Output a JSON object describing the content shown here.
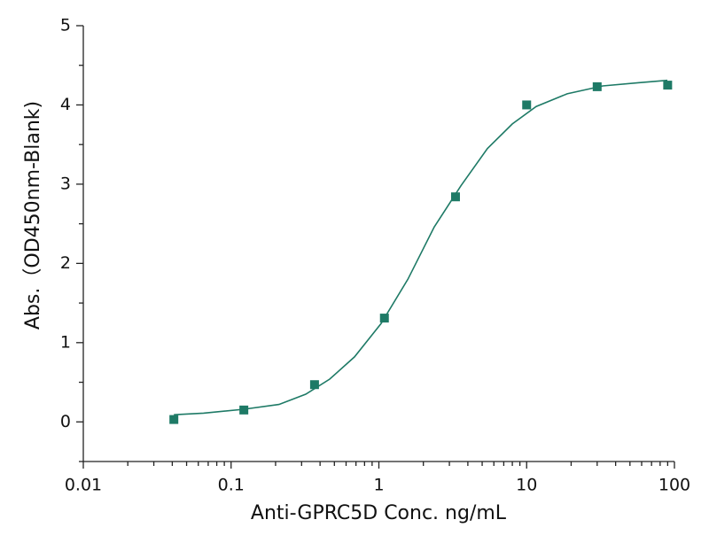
{
  "chart_data": {
    "type": "scatter",
    "x_label": "Anti-GPRC5D Conc. ng/mL",
    "y_label": "Abs.（OD450nm-Blank)",
    "xscale": "log",
    "xlim": [
      0.01,
      100
    ],
    "ylim": [
      -0.5,
      5
    ],
    "xticks": [
      0.01,
      0.1,
      1,
      10,
      100
    ],
    "xminorticks": [
      0.02,
      0.03,
      0.04,
      0.05,
      0.06,
      0.07,
      0.08,
      0.09,
      0.2,
      0.3,
      0.4,
      0.5,
      0.6,
      0.7,
      0.8,
      0.9,
      2,
      3,
      4,
      5,
      6,
      7,
      8,
      9,
      20,
      30,
      40,
      50,
      60,
      70,
      80,
      90
    ],
    "yticks": [
      0,
      1,
      2,
      3,
      4,
      5
    ],
    "yminorticks": [
      -0.5,
      0.5,
      1.5,
      2.5,
      3.5,
      4.5
    ],
    "series": [
      {
        "kind": "points",
        "color": "#1e7a66",
        "x": [
          0.041,
          0.122,
          0.367,
          1.09,
          3.3,
          10,
          30,
          90
        ],
        "values": [
          0.03,
          0.15,
          0.47,
          1.31,
          2.84,
          4.0,
          4.23,
          4.25
        ]
      },
      {
        "kind": "curve",
        "color": "#1e7a66",
        "x": [
          0.041,
          0.065,
          0.122,
          0.211,
          0.32,
          0.465,
          0.684,
          1.035,
          1.57,
          2.37,
          3.59,
          5.43,
          8.0,
          11.6,
          18.8,
          32.7,
          56.8,
          89.6
        ],
        "values": [
          0.09,
          0.11,
          0.16,
          0.22,
          0.35,
          0.54,
          0.82,
          1.24,
          1.8,
          2.46,
          2.98,
          3.45,
          3.76,
          3.98,
          4.14,
          4.24,
          4.28,
          4.31
        ]
      }
    ]
  }
}
